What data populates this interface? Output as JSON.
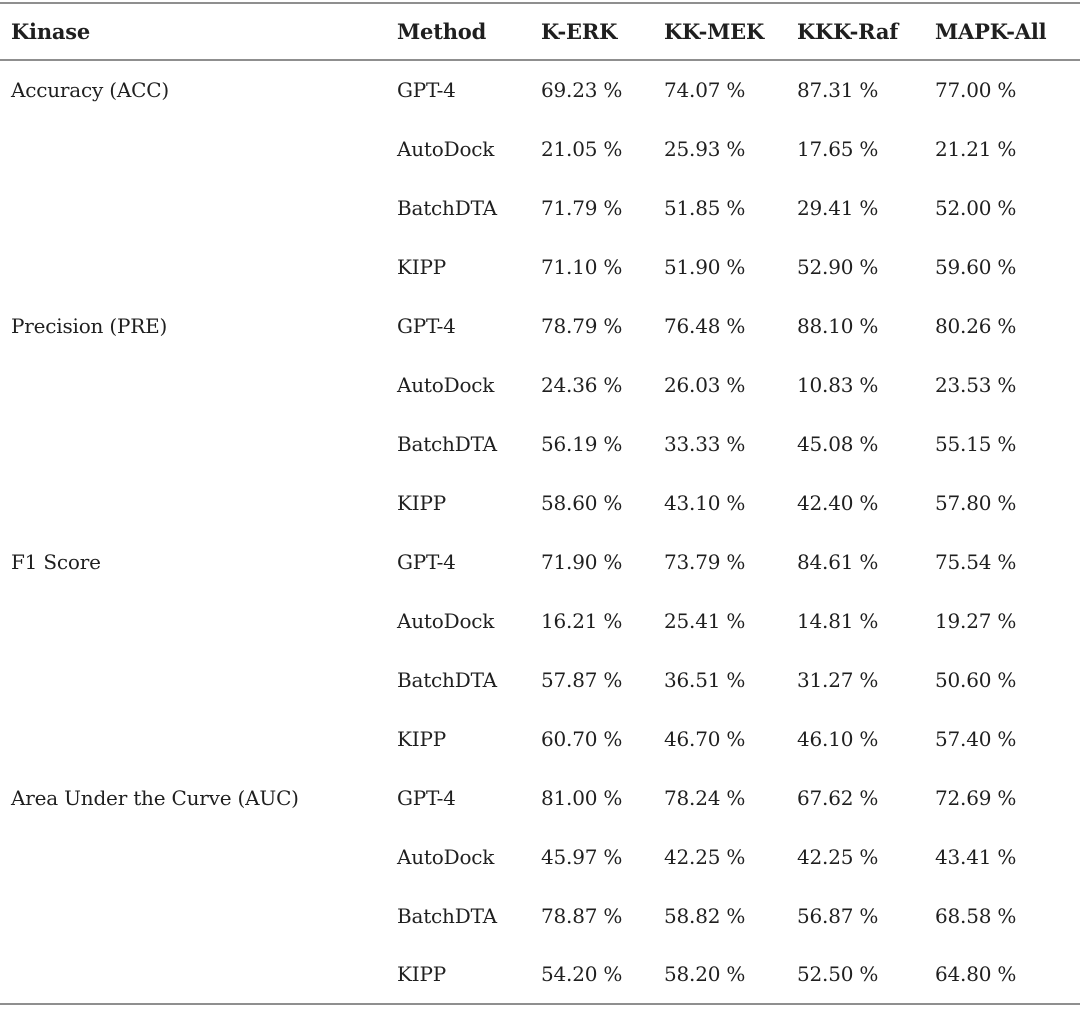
{
  "colors": {
    "rule": "#8f8f8f",
    "text": "#1f1f1f",
    "background": "#ffffff"
  },
  "table": {
    "columns": [
      "Kinase",
      "Method",
      "K-ERK",
      "KK-MEK",
      "KKK-Raf",
      "MAPK-All"
    ],
    "unit": "%",
    "groups": [
      {
        "metric": "Accuracy (ACC)",
        "rows": [
          {
            "method": "GPT-4",
            "values": [
              "69.23 %",
              "74.07 %",
              "87.31 %",
              "77.00 %"
            ]
          },
          {
            "method": "AutoDock",
            "values": [
              "21.05 %",
              "25.93 %",
              "17.65 %",
              "21.21 %"
            ]
          },
          {
            "method": "BatchDTA",
            "values": [
              "71.79 %",
              "51.85 %",
              "29.41 %",
              "52.00 %"
            ]
          },
          {
            "method": "KIPP",
            "values": [
              "71.10 %",
              "51.90 %",
              "52.90 %",
              "59.60 %"
            ]
          }
        ]
      },
      {
        "metric": "Precision (PRE)",
        "rows": [
          {
            "method": "GPT-4",
            "values": [
              "78.79 %",
              "76.48 %",
              "88.10 %",
              "80.26 %"
            ]
          },
          {
            "method": "AutoDock",
            "values": [
              "24.36 %",
              "26.03 %",
              "10.83 %",
              "23.53 %"
            ]
          },
          {
            "method": "BatchDTA",
            "values": [
              "56.19 %",
              "33.33 %",
              "45.08 %",
              "55.15 %"
            ]
          },
          {
            "method": "KIPP",
            "values": [
              "58.60 %",
              "43.10 %",
              "42.40 %",
              "57.80 %"
            ]
          }
        ]
      },
      {
        "metric": "F1 Score",
        "rows": [
          {
            "method": "GPT-4",
            "values": [
              "71.90 %",
              "73.79 %",
              "84.61 %",
              "75.54 %"
            ]
          },
          {
            "method": "AutoDock",
            "values": [
              "16.21 %",
              "25.41 %",
              "14.81 %",
              "19.27 %"
            ]
          },
          {
            "method": "BatchDTA",
            "values": [
              "57.87 %",
              "36.51 %",
              "31.27 %",
              "50.60 %"
            ]
          },
          {
            "method": "KIPP",
            "values": [
              "60.70 %",
              "46.70 %",
              "46.10 %",
              "57.40 %"
            ]
          }
        ]
      },
      {
        "metric": "Area Under the Curve (AUC)",
        "rows": [
          {
            "method": "GPT-4",
            "values": [
              "81.00 %",
              "78.24 %",
              "67.62 %",
              "72.69 %"
            ]
          },
          {
            "method": "AutoDock",
            "values": [
              "45.97 %",
              "42.25 %",
              "42.25 %",
              "43.41 %"
            ]
          },
          {
            "method": "BatchDTA",
            "values": [
              "78.87 %",
              "58.82 %",
              "56.87 %",
              "68.58 %"
            ]
          },
          {
            "method": "KIPP",
            "values": [
              "54.20 %",
              "58.20 %",
              "52.50 %",
              "64.80 %"
            ]
          }
        ]
      }
    ]
  }
}
